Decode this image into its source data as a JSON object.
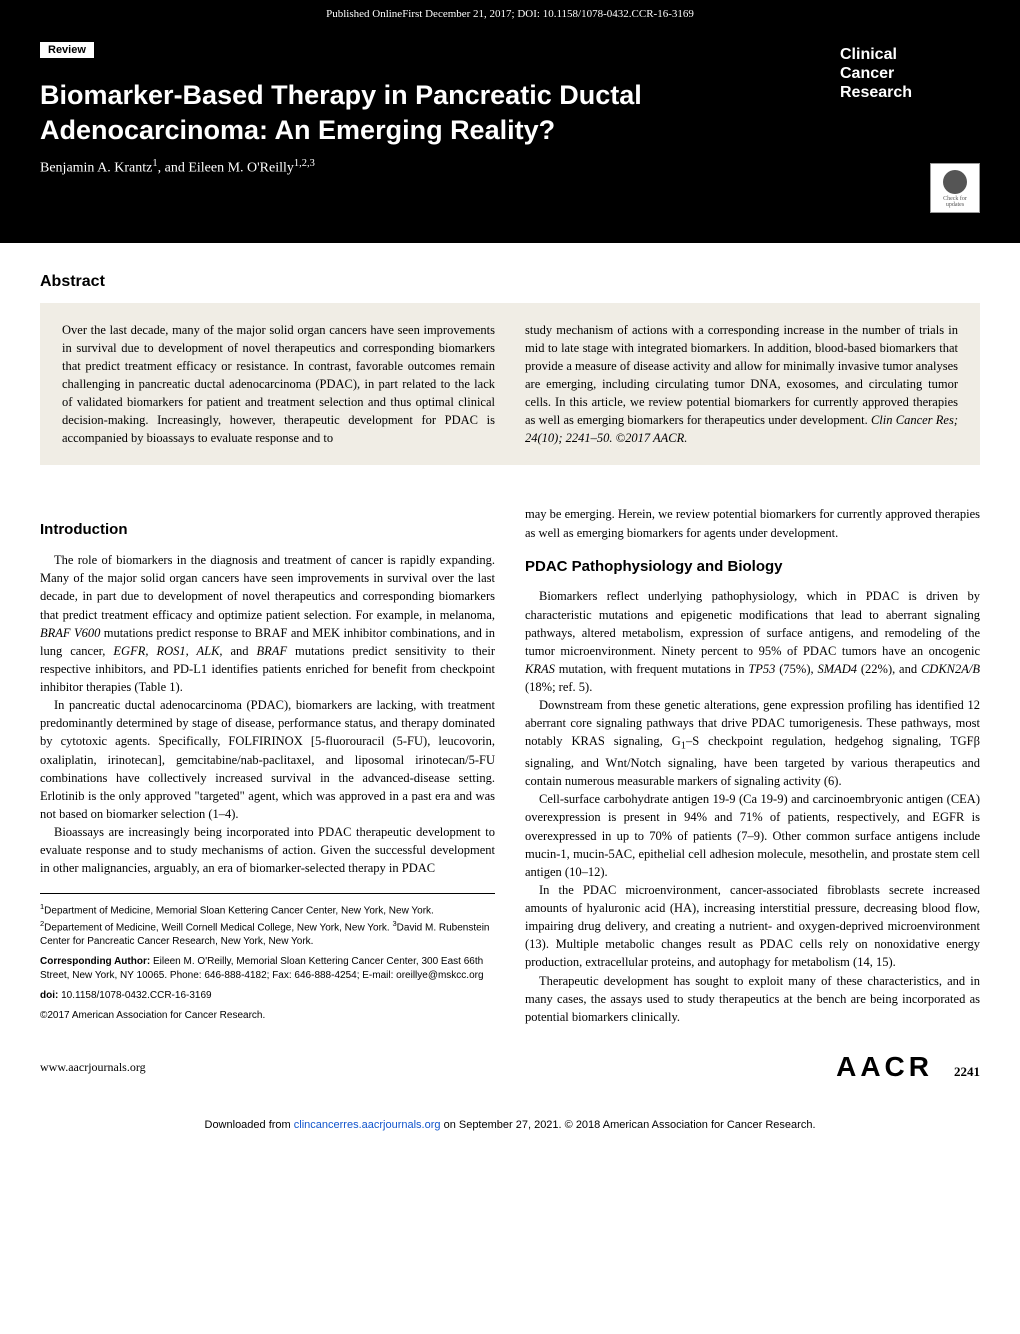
{
  "header": {
    "published_online": "Published OnlineFirst December 21, 2017; DOI: 10.1158/1078-0432.CCR-16-3169"
  },
  "article": {
    "review_label": "Review",
    "title": "Biomarker-Based Therapy in Pancreatic Ductal Adenocarcinoma: An Emerging Reality?",
    "authors_html": "Benjamin A. Krantz<sup>1</sup>, and Eileen M. O'Reilly<sup>1,2,3</sup>",
    "journal_brand_line1": "Clinical",
    "journal_brand_line2": "Cancer",
    "journal_brand_line3": "Research",
    "check_updates": "Check for updates"
  },
  "abstract": {
    "heading": "Abstract",
    "col1": "Over the last decade, many of the major solid organ cancers have seen improvements in survival due to development of novel therapeutics and corresponding biomarkers that predict treatment efficacy or resistance. In contrast, favorable outcomes remain challenging in pancreatic ductal adenocarcinoma (PDAC), in part related to the lack of validated biomarkers for patient and treatment selection and thus optimal clinical decision-making. Increasingly, however, therapeutic development for PDAC is accompanied by bioassays to evaluate response and to",
    "col2_html": "study mechanism of actions with a corresponding increase in the number of trials in mid to late stage with integrated biomarkers. In addition, blood-based biomarkers that provide a measure of disease activity and allow for minimally invasive tumor analyses are emerging, including circulating tumor DNA, exosomes, and circulating tumor cells. In this article, we review potential biomarkers for currently approved therapies as well as emerging biomarkers for therapeutics under development. <span class=\"italic\">Clin Cancer Res; 24(10); 2241–50. ©2017 AACR.</span>"
  },
  "body": {
    "left": {
      "intro_heading": "Introduction",
      "p1": "The role of biomarkers in the diagnosis and treatment of cancer is rapidly expanding. Many of the major solid organ cancers have seen improvements in survival over the last decade, in part due to development of novel therapeutics and corresponding biomarkers that predict treatment efficacy and optimize patient selection. For example, in melanoma, <span class=\"italic\">BRAF V600</span> mutations predict response to BRAF and MEK inhibitor combinations, and in lung cancer, <span class=\"italic\">EGFR, ROS1, ALK,</span> and <span class=\"italic\">BRAF</span> mutations predict sensitivity to their respective inhibitors, and PD-L1 identifies patients enriched for benefit from checkpoint inhibitor therapies (Table 1).",
      "p2": "In pancreatic ductal adenocarcinoma (PDAC), biomarkers are lacking, with treatment predominantly determined by stage of disease, performance status, and therapy dominated by cytotoxic agents. Specifically, FOLFIRINOX [5-fluorouracil (5-FU), leucovorin, oxaliplatin, irinotecan], gemcitabine/nab-paclitaxel, and liposomal irinotecan/5-FU combinations have collectively increased survival in the advanced-disease setting. Erlotinib is the only approved \"targeted\" agent, which was approved in a past era and was not based on biomarker selection (1–4).",
      "p3": "Bioassays are increasingly being incorporated into PDAC therapeutic development to evaluate response and to study mechanisms of action. Given the successful development in other malignancies, arguably, an era of biomarker-selected therapy in PDAC",
      "affil_html": "<sup>1</sup>Department of Medicine, Memorial Sloan Kettering Cancer Center, New York, New York. <sup>2</sup>Departement of Medicine, Weill Cornell Medical College, New York, New York. <sup>3</sup>David M. Rubenstein Center for Pancreatic Cancer Research, New York, New York.",
      "corr_author_html": "<span class=\"corr-author\">Corresponding Author:</span> Eileen M. O'Reilly, Memorial Sloan Kettering Cancer Center, 300 East 66th Street, New York, NY 10065. Phone: 646-888-4182; Fax: 646-888-4254; E-mail: oreillye@mskcc.org",
      "doi_html": "<span class=\"doi\">doi:</span> 10.1158/1078-0432.CCR-16-3169",
      "copyright": "©2017 American Association for Cancer Research."
    },
    "right": {
      "p1": "may be emerging. Herein, we review potential biomarkers for currently approved therapies as well as emerging biomarkers for agents under development.",
      "patho_heading": "PDAC Pathophysiology and Biology",
      "p2": "Biomarkers reflect underlying pathophysiology, which in PDAC is driven by characteristic mutations and epigenetic modifications that lead to aberrant signaling pathways, altered metabolism, expression of surface antigens, and remodeling of the tumor microenvironment. Ninety percent to 95% of PDAC tumors have an oncogenic <span class=\"italic\">KRAS</span> mutation, with frequent mutations in <span class=\"italic\">TP53</span> (75%), <span class=\"italic\">SMAD4</span> (22%), and <span class=\"italic\">CDKN2A/B</span> (18%; ref. 5).",
      "p3": "Downstream from these genetic alterations, gene expression profiling has identified 12 aberrant core signaling pathways that drive PDAC tumorigenesis. These pathways, most notably KRAS signaling, G<sub>1</sub>–S checkpoint regulation, hedgehog signaling, TGFβ signaling, and Wnt/Notch signaling, have been targeted by various therapeutics and contain numerous measurable markers of signaling activity (6).",
      "p4": "Cell-surface carbohydrate antigen 19-9 (Ca 19-9) and carcinoembryonic antigen (CEA) overexpression is present in 94% and 71% of patients, respectively, and EGFR is overexpressed in up to 70% of patients (7–9). Other common surface antigens include mucin-1, mucin-5AC, epithelial cell adhesion molecule, mesothelin, and prostate stem cell antigen (10–12).",
      "p5": "In the PDAC microenvironment, cancer-associated fibroblasts secrete increased amounts of hyaluronic acid (HA), increasing interstitial pressure, decreasing blood flow, impairing drug delivery, and creating a nutrient- and oxygen-deprived microenvironment (13). Multiple metabolic changes result as PDAC cells rely on nonoxidative energy production, extracellular proteins, and autophagy for metabolism (14, 15).",
      "p6": "Therapeutic development has sought to exploit many of these characteristics, and in many cases, the assays used to study therapeutics at the bench are being incorporated as potential biomarkers clinically."
    }
  },
  "footer": {
    "site": "www.aacrjournals.org",
    "logo": "AACR",
    "page_num": "2241",
    "download_html": "Downloaded from <a href=\"#\">clincancerres.aacrjournals.org</a> on September 27, 2021. © 2018 American Association for Cancer Research."
  },
  "colors": {
    "black": "#000000",
    "white": "#ffffff",
    "abstract_bg": "#f0ede5",
    "link": "#1155cc"
  }
}
